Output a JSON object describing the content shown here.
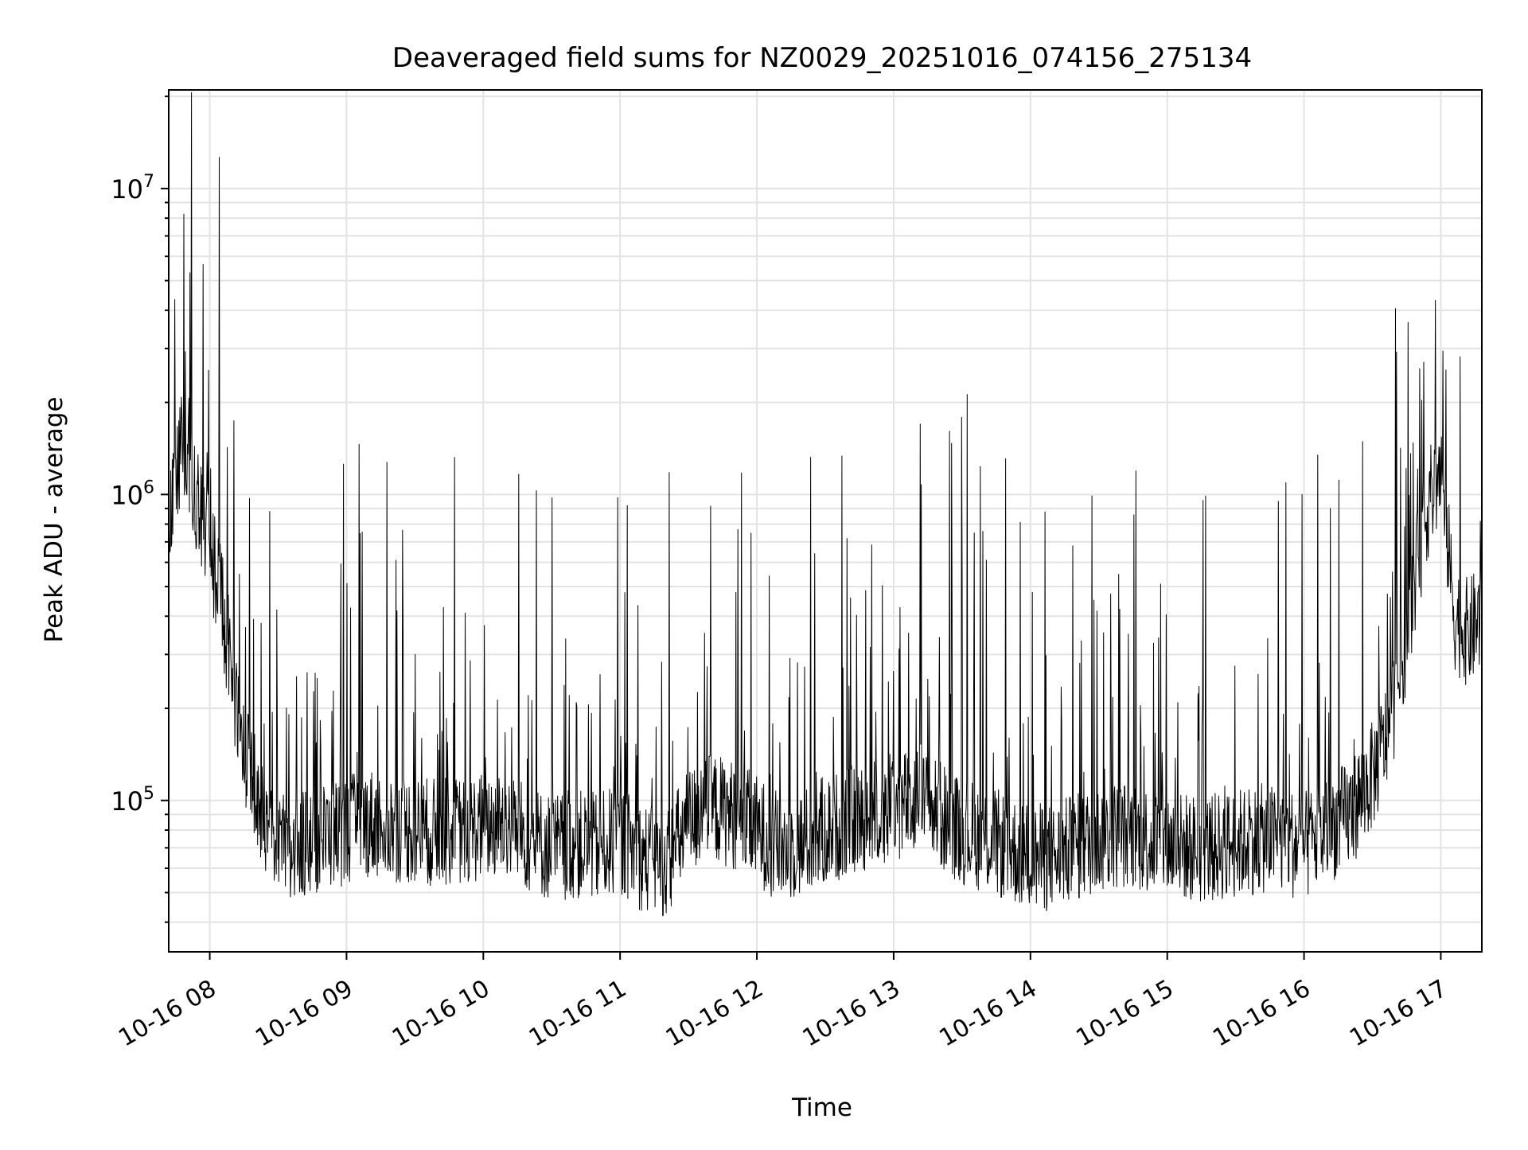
{
  "chart_data": {
    "type": "line",
    "title": "Deaveraged field sums for NZ0029_20251016_074156_275134",
    "xlabel": "Time",
    "ylabel": "Peak ADU - average",
    "yscale": "log",
    "ylim": [
      32000,
      21000000
    ],
    "xlim": [
      "10-16 07:42",
      "10-16 17:18"
    ],
    "grid": true,
    "x_tick_labels": [
      "10-16 08",
      "10-16 09",
      "10-16 10",
      "10-16 11",
      "10-16 12",
      "10-16 13",
      "10-16 14",
      "10-16 15",
      "10-16 16",
      "10-16 17"
    ],
    "y_tick_labels": [
      {
        "base": "10",
        "exp": "5"
      },
      {
        "base": "10",
        "exp": "6"
      },
      {
        "base": "10",
        "exp": "7"
      }
    ],
    "series": [
      {
        "color": "#000000",
        "x": [
          "10-16 07:42",
          "10-16 07:48",
          "10-16 07:54",
          "10-16 08:00",
          "10-16 08:06",
          "10-16 08:12",
          "10-16 08:18",
          "10-16 08:24",
          "10-16 08:30",
          "10-16 08:36",
          "10-16 08:42",
          "10-16 08:48",
          "10-16 08:54",
          "10-16 09:00",
          "10-16 09:10",
          "10-16 09:20",
          "10-16 09:30",
          "10-16 09:40",
          "10-16 09:50",
          "10-16 10:00",
          "10-16 10:10",
          "10-16 10:20",
          "10-16 10:30",
          "10-16 10:40",
          "10-16 10:50",
          "10-16 11:00",
          "10-16 11:10",
          "10-16 11:20",
          "10-16 11:30",
          "10-16 11:40",
          "10-16 11:50",
          "10-16 12:00",
          "10-16 12:10",
          "10-16 12:20",
          "10-16 12:30",
          "10-16 12:40",
          "10-16 12:50",
          "10-16 13:00",
          "10-16 13:10",
          "10-16 13:20",
          "10-16 13:30",
          "10-16 13:40",
          "10-16 13:50",
          "10-16 14:00",
          "10-16 14:10",
          "10-16 14:20",
          "10-16 14:30",
          "10-16 14:40",
          "10-16 14:50",
          "10-16 15:00",
          "10-16 15:10",
          "10-16 15:20",
          "10-16 15:30",
          "10-16 15:40",
          "10-16 15:50",
          "10-16 16:00",
          "10-16 16:10",
          "10-16 16:20",
          "10-16 16:30",
          "10-16 16:36",
          "10-16 16:42",
          "10-16 16:48",
          "10-16 16:54",
          "10-16 17:00",
          "10-16 17:06",
          "10-16 17:12",
          "10-16 17:18"
        ],
        "y": [
          800000,
          1500000,
          1000000,
          700000,
          400000,
          200000,
          120000,
          85000,
          70000,
          68000,
          72000,
          75000,
          78000,
          80000,
          85000,
          82000,
          80000,
          78000,
          80000,
          82000,
          85000,
          75000,
          70000,
          72000,
          70000,
          75000,
          65000,
          62000,
          85000,
          95000,
          90000,
          80000,
          70000,
          72000,
          80000,
          85000,
          90000,
          95000,
          100000,
          90000,
          80000,
          75000,
          70000,
          65000,
          65000,
          70000,
          75000,
          78000,
          75000,
          72000,
          70000,
          70000,
          72000,
          75000,
          75000,
          70000,
          80000,
          90000,
          120000,
          160000,
          250000,
          500000,
          900000,
          1200000,
          400000,
          350000,
          400000
        ]
      }
    ]
  }
}
